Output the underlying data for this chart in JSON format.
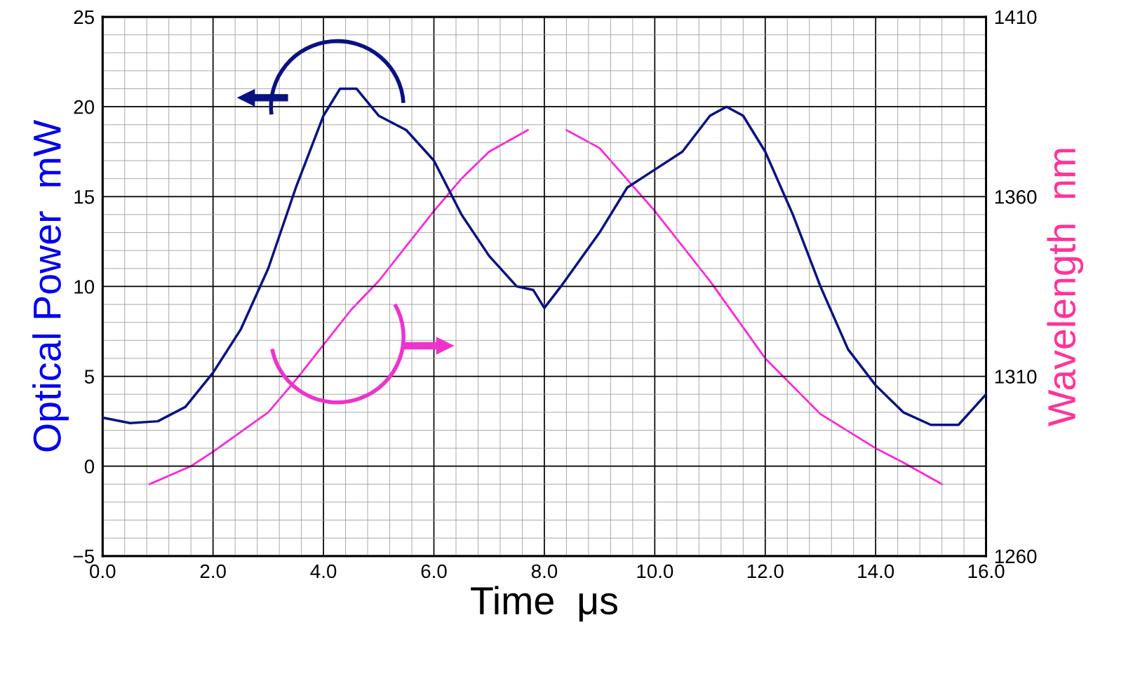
{
  "chart_data": {
    "type": "line",
    "xlabel": "Time  μs",
    "ylabel": "Optical Power  mW",
    "y2label": "Wavelength  nm",
    "xlim": [
      0,
      16
    ],
    "xticks": [
      {
        "value": 0,
        "label": "0.0"
      },
      {
        "value": 2,
        "label": "2.0"
      },
      {
        "value": 4,
        "label": "4.0"
      },
      {
        "value": 6,
        "label": "6.0"
      },
      {
        "value": 8,
        "label": "8.0"
      },
      {
        "value": 10,
        "label": "10.0"
      },
      {
        "value": 12,
        "label": "12.0"
      },
      {
        "value": 14,
        "label": "14.0"
      },
      {
        "value": 16,
        "label": "16.0"
      }
    ],
    "ylim": [
      -5,
      25
    ],
    "yticks": [
      {
        "value": -5,
        "label": "−5"
      },
      0,
      5,
      10,
      15,
      20,
      25
    ],
    "y2lim": [
      1260,
      1410
    ],
    "y2ticks": [
      1260,
      1310,
      1360,
      1410
    ],
    "grid": true,
    "marker": "none",
    "line_style": "solid",
    "series": [
      {
        "color": "#0a1282",
        "x": [
          0,
          0.5,
          1.0,
          1.5,
          2.0,
          2.5,
          3.0,
          3.5,
          4.0,
          4.3,
          4.6,
          5.0,
          5.5,
          6.0,
          6.5,
          7.0,
          7.5,
          7.8,
          8.0,
          8.3,
          9.0,
          9.5,
          10.0,
          10.5,
          11.0,
          11.3,
          11.6,
          12.0,
          12.5,
          13.0,
          13.5,
          14.0,
          14.5,
          15.0,
          15.5,
          16.0
        ],
        "values": [
          2.7,
          2.4,
          2.5,
          3.3,
          5.2,
          7.6,
          11,
          15.5,
          19.5,
          21,
          21,
          19.5,
          18.7,
          17,
          14,
          11.7,
          10,
          9.8,
          8.8,
          10,
          13,
          15.5,
          16.5,
          17.5,
          19.5,
          20,
          19.5,
          17.5,
          14,
          10,
          6.5,
          4.5,
          3,
          2.3,
          2.3,
          4
        ]
      },
      {
        "color": "#ff22dd",
        "axis": "y2",
        "x": [
          0.85,
          1.6,
          2.0,
          3.0,
          3.5,
          4.5,
          5.0,
          6.0,
          6.5,
          7.0,
          7.7,
          8.05,
          8.4,
          9.0,
          10.0,
          11.0,
          12.0,
          13.0,
          14.0,
          14.5,
          15.2
        ],
        "values": [
          1280,
          1285,
          1289,
          1300,
          1309,
          1328.5,
          1336.5,
          1356,
          1365,
          1372.5,
          1378.5,
          null,
          1378.5,
          1373.5,
          1356,
          1336.5,
          1315,
          1299.5,
          1290,
          1286,
          1280
        ]
      }
    ]
  }
}
